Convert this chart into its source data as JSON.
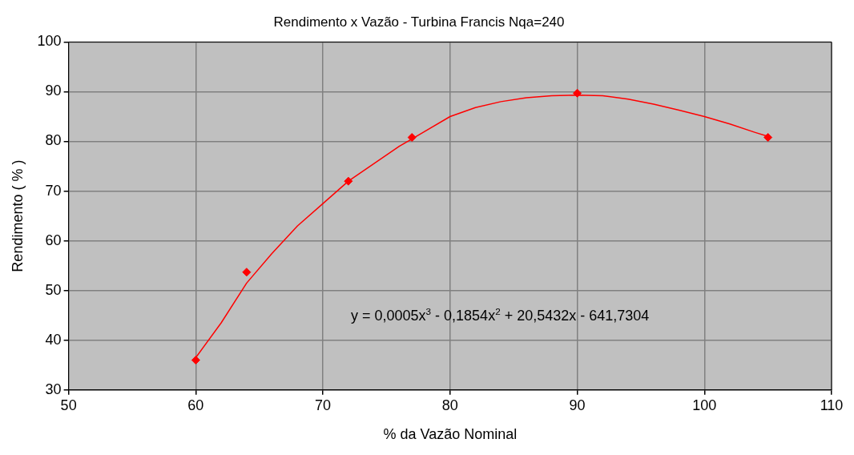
{
  "chart_data": {
    "type": "scatter",
    "title": "Rendimento x Vazão - Turbina Francis Nqa=240",
    "xlabel": "% da Vazão Nominal",
    "ylabel": "Rendimento ( % )",
    "annotations": [
      "y = 0,0005x$^{3}$ - 0,1854x$^{2}$ + 20,5432x - 641,7304"
    ],
    "series": [
      {
        "color": "#ff0000",
        "marker": "diamond",
        "x": [
          60,
          64,
          72,
          77,
          90,
          105
        ],
        "values": [
          36,
          53.7,
          72,
          80.8,
          89.7,
          80.8
        ]
      },
      {
        "type": "line",
        "color": "#ff0000",
        "marker": "none",
        "line_style": "solid",
        "x": [
          60,
          62,
          64,
          66,
          68,
          70,
          72,
          74,
          76,
          78,
          80,
          82,
          84,
          86,
          88,
          90,
          92,
          94,
          96,
          98,
          100,
          102,
          104,
          105
        ],
        "values": [
          36.5,
          43.5,
          51.5,
          57.5,
          63,
          67.5,
          72,
          75.5,
          79,
          82,
          85,
          86.8,
          88,
          88.8,
          89.2,
          89.3,
          89.2,
          88.5,
          87.5,
          86.3,
          85,
          83.5,
          81.8,
          81
        ]
      }
    ],
    "xlim": [
      50,
      110
    ],
    "xticks": [
      50,
      60,
      70,
      80,
      90,
      100,
      110
    ],
    "ylim": [
      30,
      100
    ],
    "yticks": [
      30,
      40,
      50,
      60,
      70,
      80,
      90,
      100
    ],
    "grid": true,
    "legend": false
  }
}
